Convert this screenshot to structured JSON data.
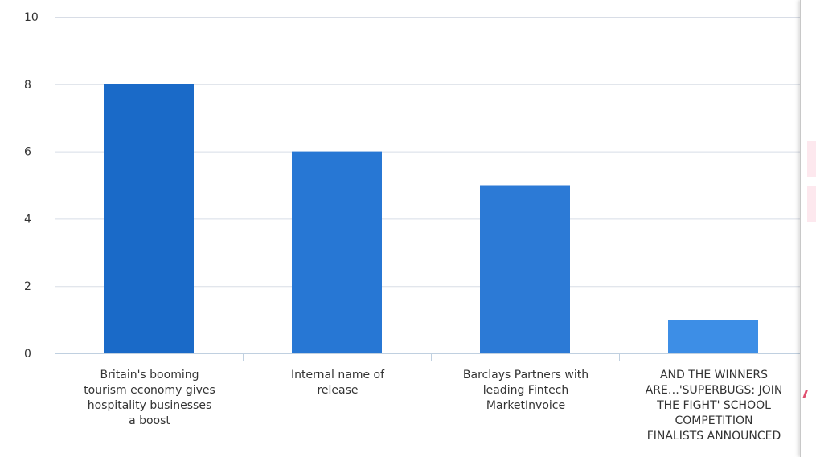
{
  "chart_data": {
    "type": "bar",
    "categories": [
      "Britain's booming\ntourism economy gives\nhospitality businesses\na boost",
      "Internal name of\nrelease",
      "Barclays Partners with\nleading Fintech\nMarketInvoice",
      "AND THE WINNERS\nARE…'SUPERBUGS: JOIN\nTHE FIGHT' SCHOOL\nCOMPETITION\nFINALISTS ANNOUNCED"
    ],
    "values": [
      8,
      6,
      5,
      1
    ],
    "ylim": [
      0,
      10
    ],
    "yticks": [
      0,
      2,
      4,
      6,
      8,
      10
    ],
    "grid": true,
    "title": "",
    "xlabel": "",
    "ylabel": ""
  },
  "colors": {
    "bars": [
      "#1a6ac8",
      "#2777d4",
      "#2c7ad6",
      "#3d8ee6"
    ],
    "grid": "#d8dde6",
    "axis": "#c0d0e0",
    "text": "#333333"
  }
}
